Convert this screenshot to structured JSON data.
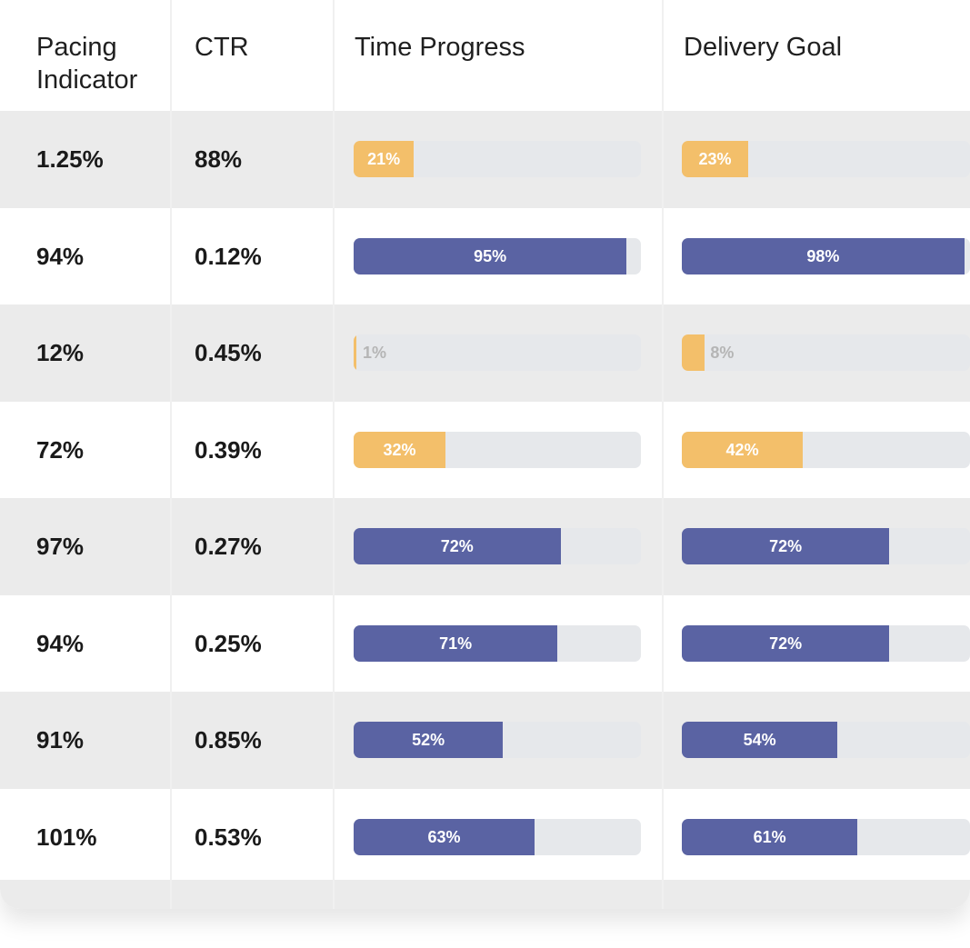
{
  "columns": [
    "Pacing Indicator",
    "CTR",
    "Time Progress",
    "Delivery Goal"
  ],
  "header": {
    "pacing_line1": "Pacing",
    "pacing_line2": "Indicator",
    "ctr": "CTR",
    "time_progress": "Time Progress",
    "delivery_goal": "Delivery Goal"
  },
  "colors": {
    "on_track": "#5a63a3",
    "behind": "#f3bf6a",
    "track": "#e6e8eb",
    "row_shade": "#ebebeb"
  },
  "rows": [
    {
      "pacing": "1.25%",
      "ctr": "88%",
      "time_label": "21%",
      "time_value": 21,
      "time_color": "orange",
      "goal_label": "23%",
      "goal_value": 23,
      "goal_color": "orange"
    },
    {
      "pacing": "94%",
      "ctr": "0.12%",
      "time_label": "95%",
      "time_value": 95,
      "time_color": "purple",
      "goal_label": "98%",
      "goal_value": 98,
      "goal_color": "purple"
    },
    {
      "pacing": "12%",
      "ctr": "0.45%",
      "time_label": "1%",
      "time_value": 1,
      "time_color": "orange",
      "goal_label": "8%",
      "goal_value": 8,
      "goal_color": "orange"
    },
    {
      "pacing": "72%",
      "ctr": "0.39%",
      "time_label": "32%",
      "time_value": 32,
      "time_color": "orange",
      "goal_label": "42%",
      "goal_value": 42,
      "goal_color": "orange"
    },
    {
      "pacing": "97%",
      "ctr": "0.27%",
      "time_label": "72%",
      "time_value": 72,
      "time_color": "purple",
      "goal_label": "72%",
      "goal_value": 72,
      "goal_color": "purple"
    },
    {
      "pacing": "94%",
      "ctr": "0.25%",
      "time_label": "71%",
      "time_value": 71,
      "time_color": "purple",
      "goal_label": "72%",
      "goal_value": 72,
      "goal_color": "purple"
    },
    {
      "pacing": "91%",
      "ctr": "0.85%",
      "time_label": "52%",
      "time_value": 52,
      "time_color": "purple",
      "goal_label": "54%",
      "goal_value": 54,
      "goal_color": "purple"
    },
    {
      "pacing": "101%",
      "ctr": "0.53%",
      "time_label": "63%",
      "time_value": 63,
      "time_color": "purple",
      "goal_label": "61%",
      "goal_value": 61,
      "goal_color": "purple"
    }
  ]
}
